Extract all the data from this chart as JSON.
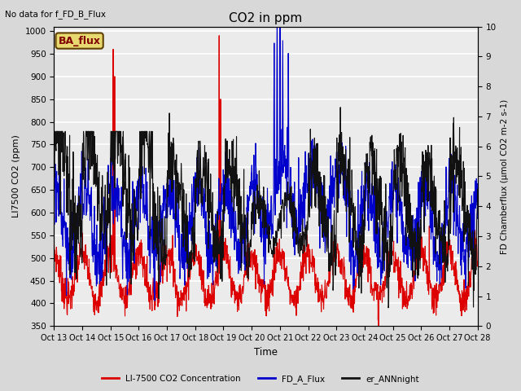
{
  "title": "CO2 in ppm",
  "top_left_text": "No data for f_FD_B_Flux",
  "inset_label": "BA_flux",
  "xlabel": "Time",
  "ylabel_left": "LI7500 CO2 (ppm)",
  "ylabel_right": "FD Chamberflux (μmol CO2 m-2 s-1)",
  "ylim_left": [
    350,
    1010
  ],
  "ylim_right": [
    0.0,
    10.0
  ],
  "yticks_left": [
    350,
    400,
    450,
    500,
    550,
    600,
    650,
    700,
    750,
    800,
    850,
    900,
    950,
    1000
  ],
  "yticks_right": [
    0.0,
    1.0,
    2.0,
    3.0,
    4.0,
    5.0,
    6.0,
    7.0,
    8.0,
    9.0,
    10.0
  ],
  "xtick_labels": [
    "Oct 13",
    "Oct 14",
    "Oct 15",
    "Oct 16",
    "Oct 17",
    "Oct 18",
    "Oct 19",
    "Oct 20",
    "Oct 21",
    "Oct 22",
    "Oct 23",
    "Oct 24",
    "Oct 25",
    "Oct 26",
    "Oct 27",
    "Oct 28"
  ],
  "legend_entries": [
    "LI-7500 CO2 Concentration",
    "FD_A_Flux",
    "er_ANNnight"
  ],
  "legend_colors": [
    "#dd0000",
    "#0000cc",
    "#111111"
  ],
  "bg_color": "#d8d8d8",
  "plot_bg_color": "#ebebeb",
  "inset_bg": "#e8d870",
  "inset_border": "#604000",
  "inset_text_color": "#800000",
  "grid_color": "#ffffff"
}
